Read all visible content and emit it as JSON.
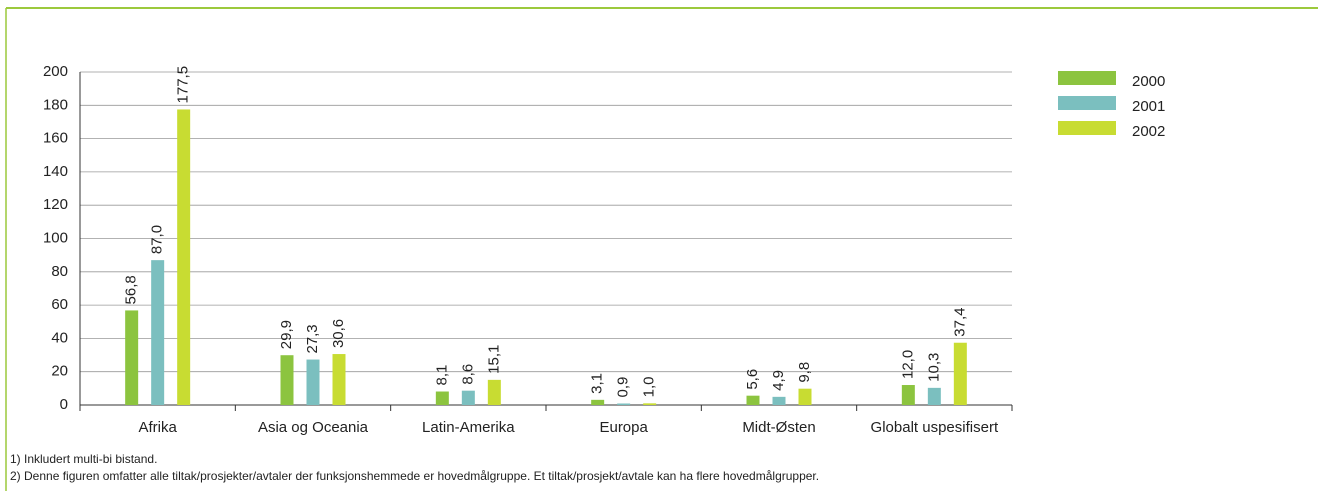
{
  "chart_data": {
    "type": "bar",
    "categories": [
      "Afrika",
      "Asia og Oceania",
      "Latin-Amerika",
      "Europa",
      "Midt-Østen",
      "Globalt uspesifisert"
    ],
    "series": [
      {
        "name": "2000",
        "color": "#8cc43f",
        "values": [
          56.8,
          29.9,
          8.1,
          3.1,
          5.6,
          12.0
        ],
        "value_labels": [
          "56,8",
          "29,9",
          "8,1",
          "3,1",
          "5,6",
          "12,0"
        ]
      },
      {
        "name": "2001",
        "color": "#7bbfbf",
        "values": [
          87.0,
          27.3,
          8.6,
          0.9,
          4.9,
          10.3
        ],
        "value_labels": [
          "87,0",
          "27,3",
          "8,6",
          "0,9",
          "4,9",
          "10,3"
        ]
      },
      {
        "name": "2002",
        "color": "#c8dc32",
        "values": [
          177.5,
          30.6,
          15.1,
          1.0,
          9.8,
          37.4
        ],
        "value_labels": [
          "177,5",
          "30,6",
          "15,1",
          "1,0",
          "9,8",
          "37,4"
        ]
      }
    ],
    "ylim": [
      0,
      200
    ],
    "yticks": [
      0,
      20,
      40,
      60,
      80,
      100,
      120,
      140,
      160,
      180,
      200
    ],
    "grid": true,
    "legend": "right",
    "notes": [
      "1) Inkludert multi-bi bistand.",
      "2) Denne figuren omfatter alle tiltak/prosjekter/avtaler der funksjonshemmede er hovedmålgruppe. Et tiltak/prosjekt/avtale kan ha flere hovedmålgrupper."
    ]
  }
}
